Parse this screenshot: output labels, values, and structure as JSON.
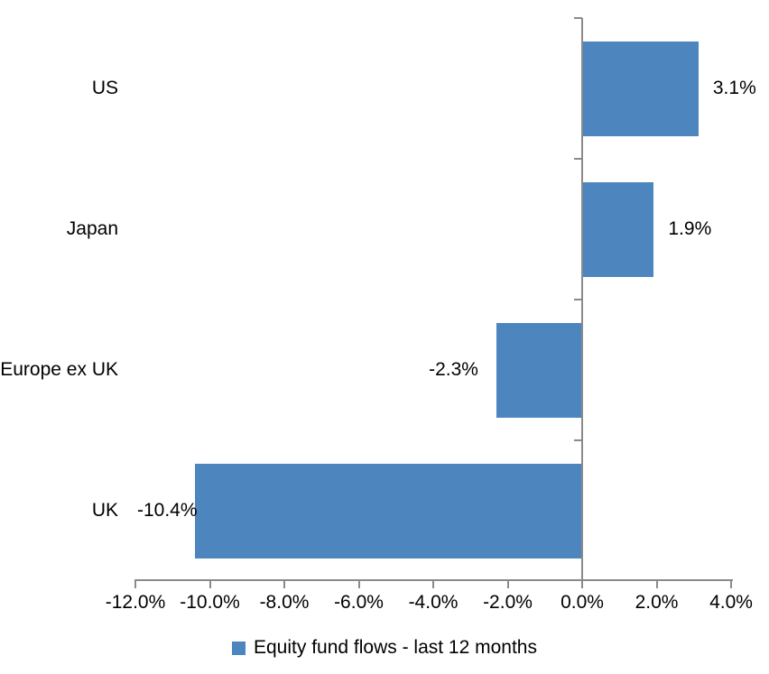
{
  "chart_data": {
    "type": "bar",
    "orientation": "horizontal",
    "title": "",
    "categories": [
      "US",
      "Japan",
      "Europe ex UK",
      "UK"
    ],
    "values": [
      3.1,
      1.9,
      -2.3,
      -10.4
    ],
    "value_labels": [
      "3.1%",
      "1.9%",
      "-2.3%",
      "-10.4%"
    ],
    "series": [
      {
        "name": "Equity fund flows - last 12 months",
        "values": [
          3.1,
          1.9,
          -2.3,
          -10.4
        ]
      }
    ],
    "xlabel": "",
    "ylabel": "",
    "xlim": [
      -12,
      4
    ],
    "x_ticks": [
      -12,
      -10,
      -8,
      -6,
      -4,
      -2,
      0,
      2,
      4
    ],
    "x_tick_labels": [
      "-12.0%",
      "-10.0%",
      "-8.0%",
      "-6.0%",
      "-4.0%",
      "-2.0%",
      "0.0%",
      "2.0%",
      "4.0%"
    ],
    "grid": false,
    "legend_position": "bottom",
    "colors": {
      "bar": "#4d86bf",
      "axis": "#8a8a8a",
      "text": "#000000",
      "background": "#ffffff"
    }
  },
  "legend": {
    "label": "Equity fund flows - last 12 months"
  }
}
